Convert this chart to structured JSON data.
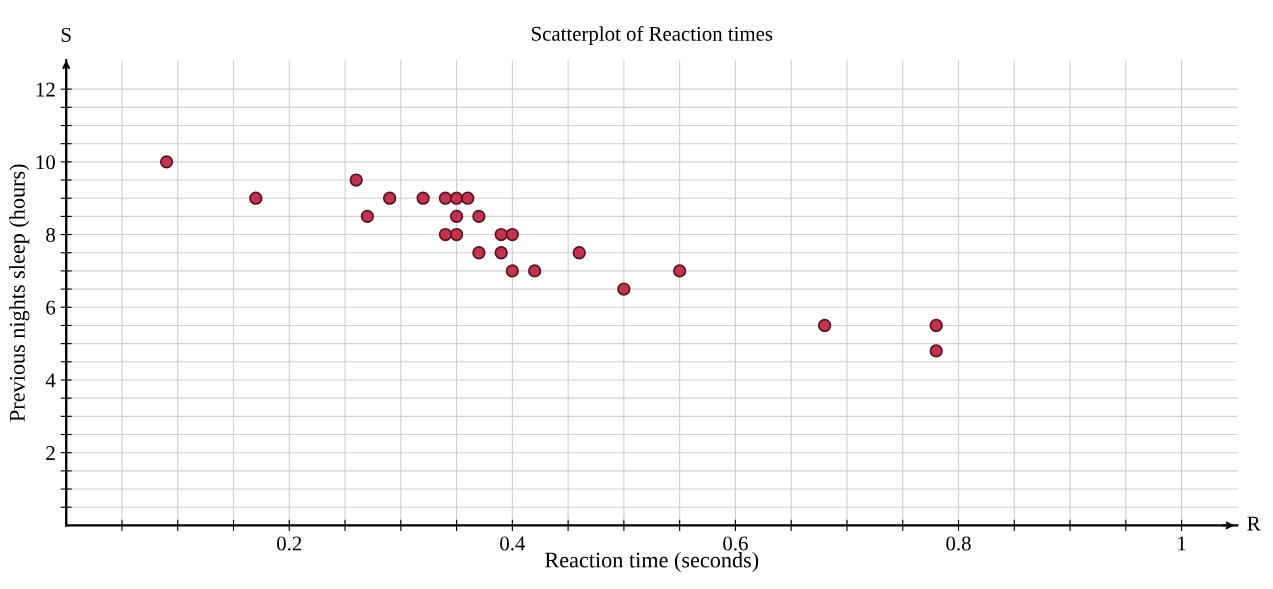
{
  "chart_data": {
    "type": "scatter",
    "title": "Scatterplot of Reaction times",
    "xlabel": "Reaction time (seconds)",
    "ylabel": "Previous nights sleep (hours)",
    "annotations": [
      "R",
      "S"
    ],
    "x": [
      0.09,
      0.17,
      0.26,
      0.27,
      0.29,
      0.32,
      0.34,
      0.35,
      0.36,
      0.35,
      0.37,
      0.34,
      0.35,
      0.39,
      0.4,
      0.37,
      0.39,
      0.4,
      0.42,
      0.46,
      0.5,
      0.55,
      0.68,
      0.78,
      0.78
    ],
    "values": [
      10,
      9,
      9.5,
      8.5,
      9,
      9,
      9,
      9,
      9,
      8.5,
      8.5,
      8,
      8,
      8,
      8,
      7.5,
      7.5,
      7,
      7,
      7.5,
      6.5,
      7,
      5.5,
      5.5,
      4.8
    ],
    "color": "#c0344f",
    "marker": "circle",
    "grid": true,
    "legend": false,
    "xlim": [
      0,
      1.05
    ],
    "ylim": [
      0,
      12.8
    ],
    "xticks": [
      {
        "value": 0.05,
        "label": null
      },
      {
        "value": 0.1,
        "label": null
      },
      {
        "value": 0.15,
        "label": null
      },
      0.2,
      {
        "value": 0.25,
        "label": null
      },
      {
        "value": 0.3,
        "label": null
      },
      {
        "value": 0.35,
        "label": null
      },
      0.4,
      {
        "value": 0.45,
        "label": null
      },
      {
        "value": 0.5,
        "label": null
      },
      {
        "value": 0.55,
        "label": null
      },
      0.6,
      {
        "value": 0.65,
        "label": null
      },
      {
        "value": 0.7,
        "label": null
      },
      {
        "value": 0.75,
        "label": null
      },
      0.8,
      {
        "value": 0.85,
        "label": null
      },
      {
        "value": 0.9,
        "label": null
      },
      {
        "value": 0.95,
        "label": null
      },
      1
    ],
    "yticks": [
      {
        "value": 0.5,
        "label": null
      },
      {
        "value": 1,
        "label": null
      },
      {
        "value": 1.5,
        "label": null
      },
      2,
      {
        "value": 2.5,
        "label": null
      },
      {
        "value": 3,
        "label": null
      },
      {
        "value": 3.5,
        "label": null
      },
      4,
      {
        "value": 4.5,
        "label": null
      },
      {
        "value": 5,
        "label": null
      },
      {
        "value": 5.5,
        "label": null
      },
      6,
      {
        "value": 6.5,
        "label": null
      },
      {
        "value": 7,
        "label": null
      },
      {
        "value": 7.5,
        "label": null
      },
      8,
      {
        "value": 8.5,
        "label": null
      },
      {
        "value": 9,
        "label": null
      },
      {
        "value": 9.5,
        "label": null
      },
      10,
      {
        "value": 10.5,
        "label": null
      },
      {
        "value": 11,
        "label": null
      },
      {
        "value": 11.5,
        "label": null
      },
      12
    ]
  }
}
